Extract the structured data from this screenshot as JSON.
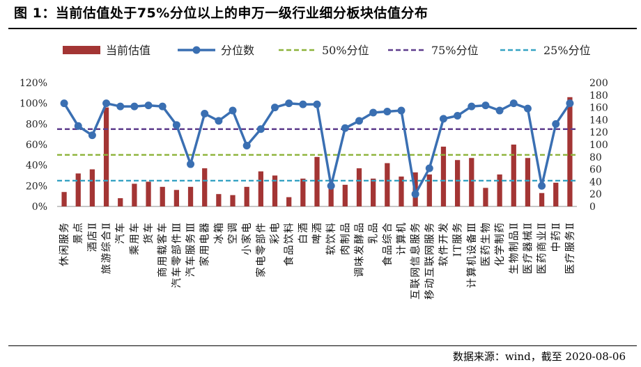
{
  "figure": {
    "title": "图 1：当前估值处于75%分位以上的申万一级行业细分板块估值分布",
    "source": "数据来源：wind，截至 2020-08-06"
  },
  "chart_data": {
    "type": "bar",
    "categories": [
      "休闲服务",
      "景点",
      "酒店Ⅱ",
      "旅游综合Ⅱ",
      "汽车",
      "乘用车",
      "货车",
      "商用载客车",
      "汽车零部件Ⅲ",
      "汽车服务Ⅲ",
      "家用电器",
      "冰箱",
      "空调",
      "小家电",
      "家电零部件",
      "彩电",
      "食品饮料",
      "白酒",
      "啤酒",
      "软饮料",
      "肉制品",
      "调味发酵品",
      "乳品",
      "食品综合",
      "计算机",
      "互联网信息服务",
      "移动互联网服务",
      "软件开发",
      "IT服务",
      "计算机设备Ⅲ",
      "医药生物",
      "化学制药",
      "生物制品Ⅱ",
      "医疗器械Ⅱ",
      "医药商业Ⅱ",
      "中药Ⅱ",
      "医疗服务Ⅱ"
    ],
    "series": [
      {
        "name": "当前估值",
        "type": "bar",
        "axis": "left",
        "values": [
          0.14,
          0.32,
          0.36,
          0.96,
          0.08,
          0.22,
          0.24,
          0.19,
          0.16,
          0.19,
          0.37,
          0.12,
          0.11,
          0.19,
          0.34,
          0.3,
          0.09,
          0.27,
          0.48,
          0.22,
          0.21,
          0.37,
          0.27,
          0.42,
          0.29,
          0.33,
          0.31,
          0.58,
          0.45,
          0.47,
          0.18,
          0.31,
          0.6,
          0.47,
          0.13,
          0.23,
          1.06
        ]
      },
      {
        "name": "分位数",
        "type": "line",
        "axis": "left",
        "values": [
          1.0,
          0.78,
          0.69,
          1.0,
          0.97,
          0.97,
          0.98,
          0.97,
          0.79,
          0.41,
          0.9,
          0.83,
          0.93,
          0.59,
          0.75,
          0.96,
          1.0,
          0.99,
          0.99,
          0.2,
          0.76,
          0.83,
          0.91,
          0.92,
          0.93,
          0.12,
          0.37,
          0.85,
          0.88,
          0.97,
          0.98,
          0.93,
          1.0,
          0.95,
          0.2,
          0.8,
          1.0
        ]
      },
      {
        "name": "50%分位",
        "type": "line",
        "axis": "left",
        "constant": 0.5
      },
      {
        "name": "75%分位",
        "type": "line",
        "axis": "left",
        "constant": 0.75
      },
      {
        "name": "25%分位",
        "type": "line",
        "axis": "left",
        "constant": 0.25
      }
    ],
    "y_left": {
      "min": 0,
      "max": 1.2,
      "step": 0.2,
      "tick_labels": [
        "0%",
        "20%",
        "40%",
        "60%",
        "80%",
        "100%",
        "120%"
      ]
    },
    "y_right": {
      "min": 0,
      "max": 200,
      "step": 20,
      "tick_labels": [
        "0",
        "20",
        "40",
        "60",
        "80",
        "100",
        "120",
        "140",
        "160",
        "180",
        "200"
      ]
    },
    "grid": false,
    "legend_position": "top",
    "colors": {
      "bar": "#a33534",
      "line": "#3a6fb2",
      "p50": "#8db33a",
      "p75": "#5e3c8c",
      "p25": "#35a2c3"
    }
  }
}
